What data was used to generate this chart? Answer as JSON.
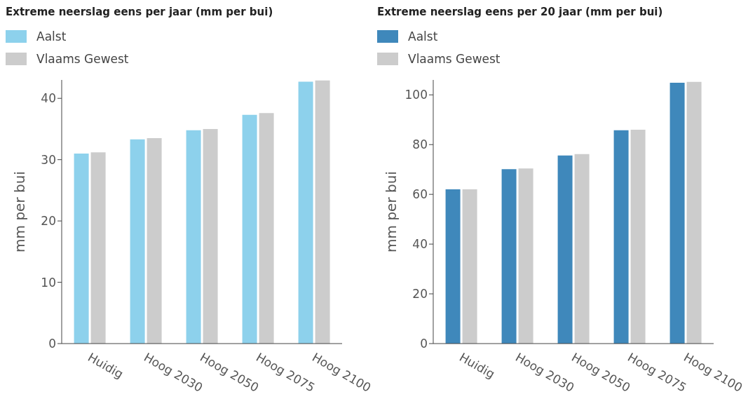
{
  "chart_data": [
    {
      "type": "bar",
      "title": "Extreme neerslag eens per jaar (mm per bui)",
      "ylabel": "mm per bui",
      "categories": [
        "Huidig",
        "Hoog 2030",
        "Hoog 2050",
        "Hoog 2075",
        "Hoog 2100"
      ],
      "series": [
        {
          "name": "Aalst",
          "color": "#8dd1ec",
          "values": [
            31.0,
            33.3,
            34.8,
            37.3,
            42.7
          ]
        },
        {
          "name": "Vlaams Gewest",
          "color": "#cccccc",
          "values": [
            31.2,
            33.5,
            35.0,
            37.6,
            42.9
          ]
        }
      ],
      "ylim": [
        0,
        43
      ],
      "yticks": [
        0,
        10,
        20,
        30,
        40
      ],
      "grid": false,
      "legend": "top left"
    },
    {
      "type": "bar",
      "title": "Extreme neerslag eens per 20 jaar (mm per bui)",
      "ylabel": "mm per bui",
      "categories": [
        "Huidig",
        "Hoog 2030",
        "Hoog 2050",
        "Hoog 2075",
        "Hoog 2100"
      ],
      "series": [
        {
          "name": "Aalst",
          "color": "#3f88bb",
          "values": [
            62,
            70.1,
            75.6,
            85.8,
            104.9
          ]
        },
        {
          "name": "Vlaams Gewest",
          "color": "#cccccc",
          "values": [
            62,
            70.4,
            76.2,
            86,
            105.2
          ]
        }
      ],
      "ylim": [
        0,
        106
      ],
      "yticks": [
        0,
        20,
        40,
        60,
        80,
        100
      ],
      "grid": false,
      "legend": "top left"
    }
  ]
}
